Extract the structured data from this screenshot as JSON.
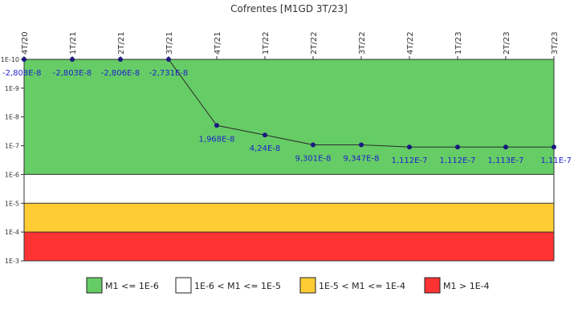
{
  "chart_data": {
    "type": "line",
    "title": "Cofrentes [M1GD 3T/23]",
    "xlabel": "",
    "ylabel": "",
    "y_scale": "log",
    "y_inverted": true,
    "ylim": [
      1e-10,
      0.001
    ],
    "grid": false,
    "legend_position": "bottom",
    "categories": [
      "4T/20",
      "1T/21",
      "2T/21",
      "3T/21",
      "4T/21",
      "1T/22",
      "2T/22",
      "3T/22",
      "4T/22",
      "1T/23",
      "2T/23",
      "3T/23"
    ],
    "y_ticks": [
      {
        "label": "1E-10",
        "value": 1e-10
      },
      {
        "label": "1E-9",
        "value": 1e-09
      },
      {
        "label": "1E-8",
        "value": 1e-08
      },
      {
        "label": "1E-7",
        "value": 1e-07
      },
      {
        "label": "1E-6",
        "value": 1e-06
      },
      {
        "label": "1E-5",
        "value": 1e-05
      },
      {
        "label": "1E-4",
        "value": 0.0001
      },
      {
        "label": "1E-3",
        "value": 0.001
      }
    ],
    "series": [
      {
        "values": [
          -2.808e-08,
          -2.803e-08,
          -2.806e-08,
          -2.731e-08,
          1.968e-08,
          4.24e-08,
          9.301e-08,
          9.347e-08,
          1.112e-07,
          1.112e-07,
          1.113e-07,
          1.11e-07
        ],
        "data_labels": [
          "-2,808E-8",
          "-2,803E-8",
          "-2,806E-8",
          "-2,731E-8",
          "1,968E-8",
          "4,24E-8",
          "9,301E-8",
          "9,347E-8",
          "1,112E-7",
          "1,112E-7",
          "1,113E-7",
          "1,11E-7"
        ],
        "color": "#1a1a80"
      }
    ],
    "bands": [
      {
        "name": "M1 <= 1E-6",
        "from": 1e-10,
        "to": 1e-06,
        "color": "#66cc66"
      },
      {
        "name": "1E-6 < M1 <= 1E-5",
        "from": 1e-06,
        "to": 1e-05,
        "color": "#ffffff"
      },
      {
        "name": "1E-5 < M1 <= 1E-4",
        "from": 1e-05,
        "to": 0.0001,
        "color": "#ffcc33"
      },
      {
        "name": "M1 > 1E-4",
        "from": 0.0001,
        "to": 0.001,
        "color": "#ff3333"
      }
    ]
  }
}
